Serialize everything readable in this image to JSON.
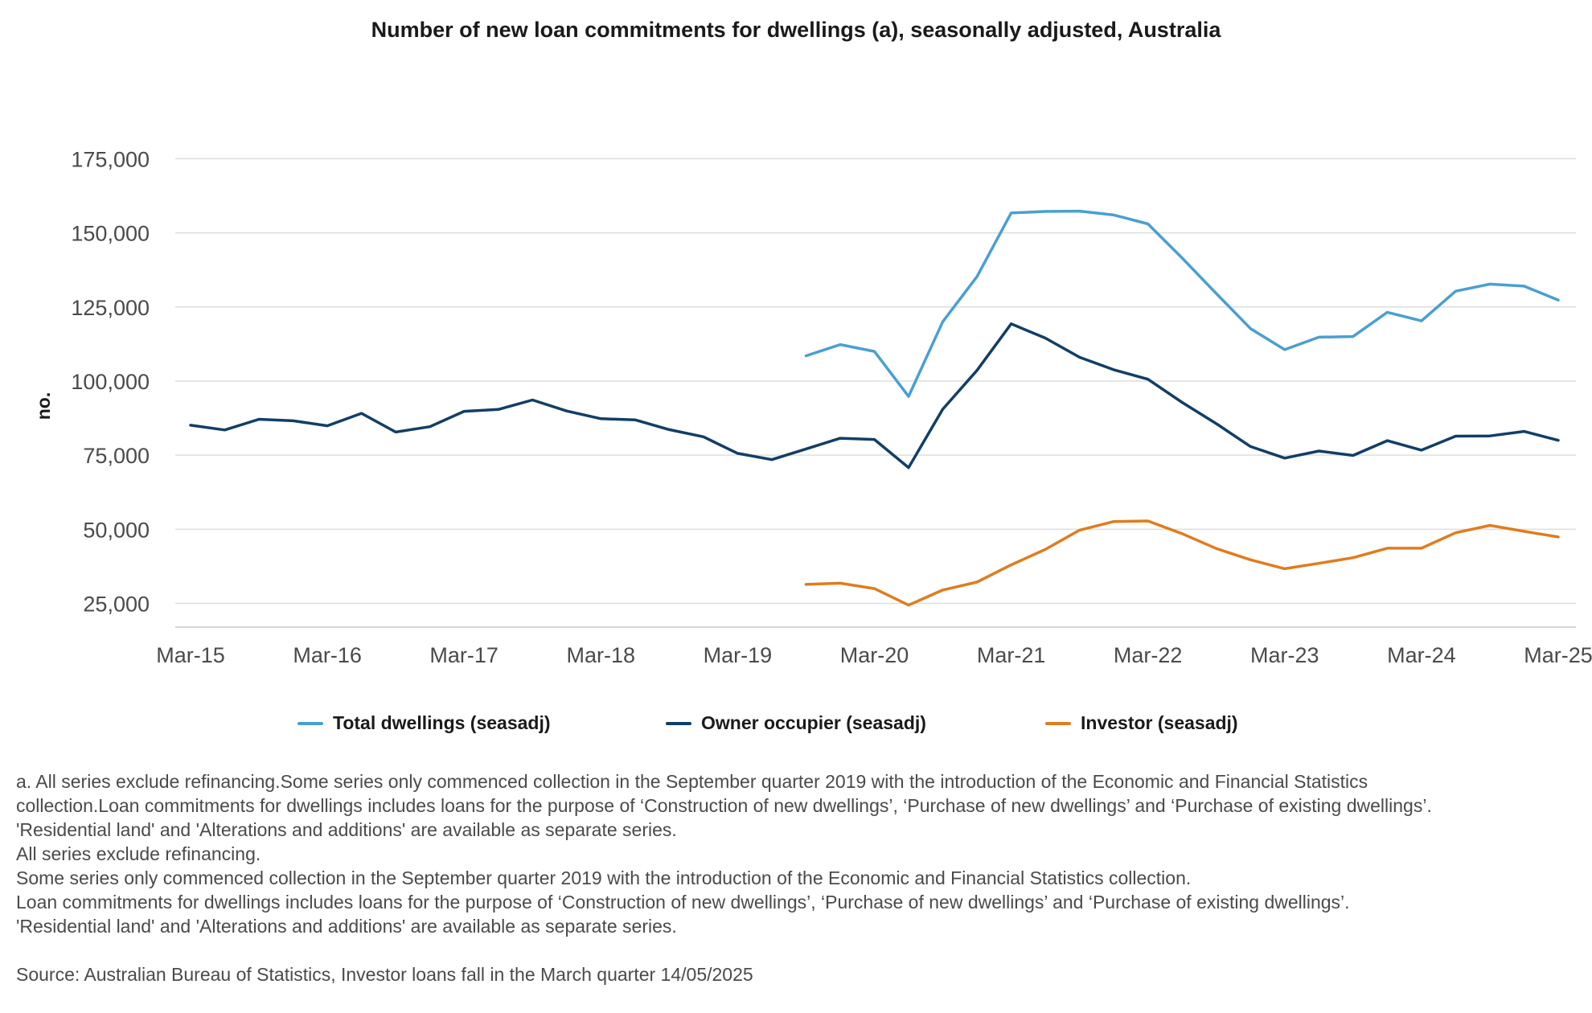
{
  "chart_data": {
    "type": "line",
    "title": "Number of new loan commitments for dwellings (a), seasonally adjusted, Australia",
    "xlabel": "",
    "ylabel": "no.",
    "ylim": [
      17000,
      177000
    ],
    "yticks": [
      25000,
      50000,
      75000,
      100000,
      125000,
      150000,
      175000
    ],
    "ytick_labels": [
      "25,000",
      "50,000",
      "75,000",
      "100,000",
      "125,000",
      "150,000",
      "175,000"
    ],
    "x": [
      "Mar-15",
      "Jun-15",
      "Sep-15",
      "Dec-15",
      "Mar-16",
      "Jun-16",
      "Sep-16",
      "Dec-16",
      "Mar-17",
      "Jun-17",
      "Sep-17",
      "Dec-17",
      "Mar-18",
      "Jun-18",
      "Sep-18",
      "Dec-18",
      "Mar-19",
      "Jun-19",
      "Sep-19",
      "Dec-19",
      "Mar-20",
      "Jun-20",
      "Sep-20",
      "Dec-20",
      "Mar-21",
      "Jun-21",
      "Sep-21",
      "Dec-21",
      "Mar-22",
      "Jun-22",
      "Sep-22",
      "Dec-22",
      "Mar-23",
      "Jun-23",
      "Sep-23",
      "Dec-23",
      "Mar-24",
      "Jun-24",
      "Sep-24",
      "Dec-24",
      "Mar-25"
    ],
    "xtick_labels": [
      "Mar-15",
      "Mar-16",
      "Mar-17",
      "Mar-18",
      "Mar-19",
      "Mar-20",
      "Mar-21",
      "Mar-22",
      "Mar-23",
      "Mar-24",
      "Mar-25"
    ],
    "grid": true,
    "legend_position": "bottom",
    "series": [
      {
        "name": "Total dwellings (seasadj)",
        "color": "#4a9fd0",
        "values": [
          null,
          null,
          null,
          null,
          null,
          null,
          null,
          null,
          null,
          null,
          null,
          null,
          null,
          null,
          null,
          null,
          null,
          null,
          108500,
          112300,
          110000,
          94800,
          120000,
          135200,
          156700,
          157200,
          157300,
          156000,
          153000,
          141500,
          129500,
          117700,
          110600,
          114800,
          115000,
          123200,
          120300,
          130300,
          132700,
          132000,
          127300
        ]
      },
      {
        "name": "Owner occupier (seasadj)",
        "color": "#123e65",
        "values": [
          85100,
          83500,
          87100,
          86600,
          84900,
          89100,
          82800,
          84600,
          89800,
          90400,
          93600,
          89900,
          87300,
          86900,
          83600,
          81200,
          75600,
          73500,
          77100,
          80700,
          80300,
          70800,
          90500,
          103600,
          119300,
          114500,
          108000,
          103800,
          100600,
          92800,
          85600,
          77900,
          74000,
          76400,
          74900,
          79900,
          76700,
          81400,
          81500,
          83000,
          80000
        ]
      },
      {
        "name": "Investor (seasadj)",
        "color": "#e07c1e",
        "values": [
          null,
          null,
          null,
          null,
          null,
          null,
          null,
          null,
          null,
          null,
          null,
          null,
          null,
          null,
          null,
          null,
          null,
          null,
          31400,
          31800,
          30000,
          24400,
          29500,
          32200,
          38000,
          43200,
          49700,
          52600,
          52800,
          48500,
          43500,
          39700,
          36700,
          38500,
          40400,
          43600,
          43600,
          48800,
          51300,
          49300,
          47400
        ]
      }
    ]
  },
  "notes": {
    "line1": "a. All series exclude refinancing.Some series only commenced collection in the September quarter 2019 with the introduction of the Economic and Financial Statistics",
    "line2": "collection.Loan commitments for dwellings includes loans for the purpose of ‘Construction of new dwellings’, ‘Purchase of new dwellings’ and ‘Purchase of existing dwellings’.",
    "line3": "'Residential land' and 'Alterations and additions' are available as separate series.",
    "line4": "All series exclude refinancing.",
    "line5": "Some series only commenced collection in the September quarter 2019 with the introduction of the Economic and Financial Statistics collection.",
    "line6": "Loan commitments for dwellings includes loans for the purpose of ‘Construction of new dwellings’, ‘Purchase of new dwellings’ and ‘Purchase of existing dwellings’.",
    "line7": "'Residential land' and 'Alterations and additions' are available as separate series.",
    "source": "Source: Australian Bureau of Statistics, Investor loans fall in the March quarter 14/05/2025"
  }
}
